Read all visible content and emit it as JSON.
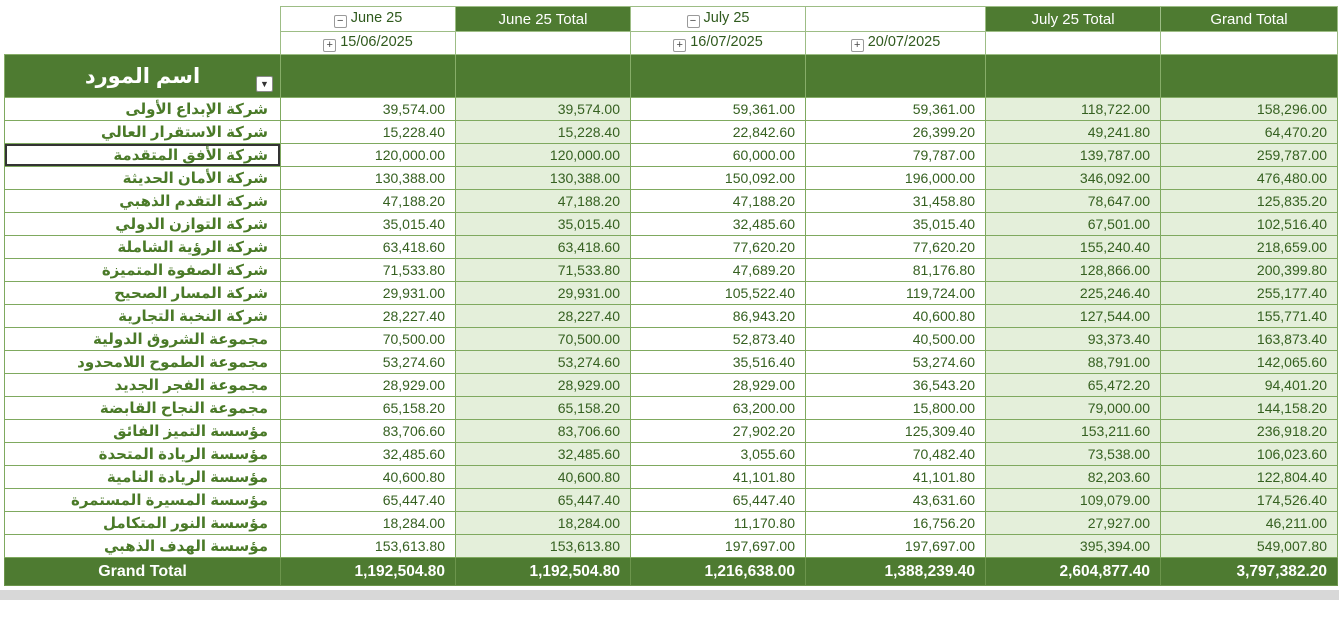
{
  "header": {
    "june25": "June 25",
    "june25_total": "June 25 Total",
    "july25": "July 25",
    "july25_total": "July 25 Total",
    "grand_total": "Grand Total",
    "date_june": "15/06/2025",
    "date_july1": "16/07/2025",
    "date_july2": "20/07/2025",
    "collapse_glyph": "−",
    "expand_glyph": "+"
  },
  "row_header": {
    "label": "اسم المورد",
    "dropdown_icon": "▼"
  },
  "selected_row_index": 2,
  "rows": [
    {
      "name": "شركة الإبداع الأولى",
      "values": [
        "39,574.00",
        "39,574.00",
        "59,361.00",
        "59,361.00",
        "118,722.00",
        "158,296.00"
      ]
    },
    {
      "name": "شركة الاستقرار العالي",
      "values": [
        "15,228.40",
        "15,228.40",
        "22,842.60",
        "26,399.20",
        "49,241.80",
        "64,470.20"
      ]
    },
    {
      "name": "شركة الأفق المتقدمة",
      "values": [
        "120,000.00",
        "120,000.00",
        "60,000.00",
        "79,787.00",
        "139,787.00",
        "259,787.00"
      ]
    },
    {
      "name": "شركة الأمان الحديثة",
      "values": [
        "130,388.00",
        "130,388.00",
        "150,092.00",
        "196,000.00",
        "346,092.00",
        "476,480.00"
      ]
    },
    {
      "name": "شركة التقدم الذهبي",
      "values": [
        "47,188.20",
        "47,188.20",
        "47,188.20",
        "31,458.80",
        "78,647.00",
        "125,835.20"
      ]
    },
    {
      "name": "شركة التوازن الدولي",
      "values": [
        "35,015.40",
        "35,015.40",
        "32,485.60",
        "35,015.40",
        "67,501.00",
        "102,516.40"
      ]
    },
    {
      "name": "شركة الرؤية الشاملة",
      "values": [
        "63,418.60",
        "63,418.60",
        "77,620.20",
        "77,620.20",
        "155,240.40",
        "218,659.00"
      ]
    },
    {
      "name": "شركة الصفوة المتميزة",
      "values": [
        "71,533.80",
        "71,533.80",
        "47,689.20",
        "81,176.80",
        "128,866.00",
        "200,399.80"
      ]
    },
    {
      "name": "شركة المسار الصحيح",
      "values": [
        "29,931.00",
        "29,931.00",
        "105,522.40",
        "119,724.00",
        "225,246.40",
        "255,177.40"
      ]
    },
    {
      "name": "شركة النخبة التجارية",
      "values": [
        "28,227.40",
        "28,227.40",
        "86,943.20",
        "40,600.80",
        "127,544.00",
        "155,771.40"
      ]
    },
    {
      "name": "مجموعة الشروق الدولية",
      "values": [
        "70,500.00",
        "70,500.00",
        "52,873.40",
        "40,500.00",
        "93,373.40",
        "163,873.40"
      ]
    },
    {
      "name": "مجموعة الطموح اللامحدود",
      "values": [
        "53,274.60",
        "53,274.60",
        "35,516.40",
        "53,274.60",
        "88,791.00",
        "142,065.60"
      ]
    },
    {
      "name": "مجموعة الفجر الجديد",
      "values": [
        "28,929.00",
        "28,929.00",
        "28,929.00",
        "36,543.20",
        "65,472.20",
        "94,401.20"
      ]
    },
    {
      "name": "مجموعة النجاح القابضة",
      "values": [
        "65,158.20",
        "65,158.20",
        "63,200.00",
        "15,800.00",
        "79,000.00",
        "144,158.20"
      ]
    },
    {
      "name": "مؤسسة التميز الفائق",
      "values": [
        "83,706.60",
        "83,706.60",
        "27,902.20",
        "125,309.40",
        "153,211.60",
        "236,918.20"
      ]
    },
    {
      "name": "مؤسسة الريادة المتحدة",
      "values": [
        "32,485.60",
        "32,485.60",
        "3,055.60",
        "70,482.40",
        "73,538.00",
        "106,023.60"
      ]
    },
    {
      "name": "مؤسسة الريادة النامية",
      "values": [
        "40,600.80",
        "40,600.80",
        "41,101.80",
        "41,101.80",
        "82,203.60",
        "122,804.40"
      ]
    },
    {
      "name": "مؤسسة المسيرة المستمرة",
      "values": [
        "65,447.40",
        "65,447.40",
        "65,447.40",
        "43,631.60",
        "109,079.00",
        "174,526.40"
      ]
    },
    {
      "name": "مؤسسة النور المتكامل",
      "values": [
        "18,284.00",
        "18,284.00",
        "11,170.80",
        "16,756.20",
        "27,927.00",
        "46,211.00"
      ]
    },
    {
      "name": "مؤسسة الهدف الذهبي",
      "values": [
        "153,613.80",
        "153,613.80",
        "197,697.00",
        "197,697.00",
        "395,394.00",
        "549,007.80"
      ]
    }
  ],
  "footer": {
    "label": "Grand Total",
    "values": [
      "1,192,504.80",
      "1,192,504.80",
      "1,216,638.00",
      "1,388,239.40",
      "2,604,877.40",
      "3,797,382.20"
    ]
  },
  "colors": {
    "header_green": "#4e7b31",
    "light_green": "#e4efda",
    "grid_green": "#7fa95f",
    "value_text_green": "#356020",
    "name_text_green": "#4a7a28"
  }
}
